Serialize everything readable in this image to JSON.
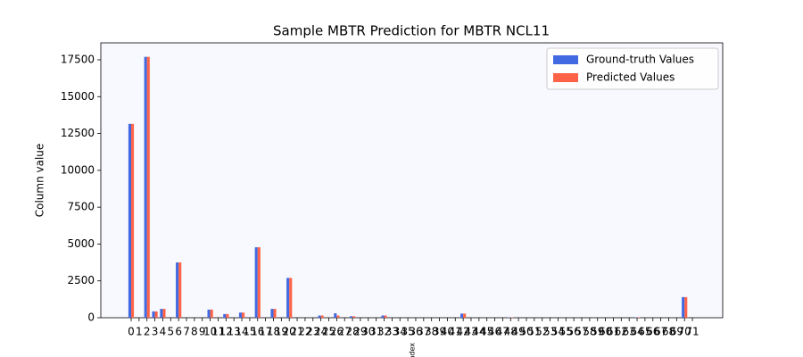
{
  "chart_data": {
    "type": "bar",
    "title": "Sample MBTR Prediction for MBTR NCL11",
    "ylabel": "Column value",
    "xlabel": "Index",
    "categories": [
      0,
      1,
      2,
      3,
      4,
      5,
      6,
      7,
      8,
      9,
      10,
      11,
      12,
      13,
      14,
      15,
      16,
      17,
      18,
      19,
      20,
      21,
      22,
      23,
      24,
      25,
      26,
      27,
      28,
      29,
      30,
      31,
      32,
      33,
      34,
      35,
      36,
      37,
      38,
      39,
      40,
      41,
      42,
      43,
      44,
      45,
      46,
      47,
      48,
      49,
      50,
      51,
      52,
      53,
      54,
      55,
      56,
      57,
      58,
      59,
      60,
      61,
      62,
      63,
      64,
      65,
      66,
      67,
      68,
      69,
      70,
      71
    ],
    "series": [
      {
        "name": "Ground-truth Values",
        "color": "#4169e1",
        "values": [
          13150,
          0,
          17700,
          430,
          600,
          0,
          3750,
          0,
          0,
          0,
          550,
          0,
          250,
          0,
          350,
          0,
          4780,
          0,
          600,
          0,
          2700,
          0,
          0,
          0,
          150,
          0,
          300,
          0,
          100,
          0,
          0,
          0,
          150,
          0,
          0,
          0,
          0,
          0,
          0,
          0,
          0,
          0,
          280,
          0,
          0,
          0,
          0,
          0,
          30,
          0,
          0,
          0,
          0,
          0,
          0,
          0,
          0,
          0,
          0,
          0,
          0,
          0,
          0,
          0,
          30,
          0,
          0,
          0,
          0,
          0,
          1400,
          0
        ]
      },
      {
        "name": "Predicted Values",
        "color": "#ff6347",
        "values": [
          13150,
          0,
          17700,
          430,
          600,
          0,
          3750,
          0,
          0,
          0,
          550,
          0,
          250,
          0,
          350,
          0,
          4780,
          0,
          600,
          0,
          2700,
          0,
          0,
          0,
          150,
          0,
          150,
          0,
          100,
          0,
          0,
          0,
          150,
          0,
          0,
          0,
          0,
          0,
          0,
          0,
          0,
          0,
          280,
          0,
          0,
          0,
          0,
          0,
          30,
          0,
          0,
          0,
          0,
          0,
          0,
          0,
          0,
          0,
          0,
          0,
          0,
          0,
          0,
          0,
          30,
          0,
          0,
          0,
          0,
          0,
          1400,
          0
        ]
      }
    ],
    "ylim": [
      0,
      18650
    ],
    "yticks": [
      0,
      2500,
      5000,
      7500,
      10000,
      12500,
      15000,
      17500
    ],
    "background": "#f8f8ff",
    "legend": "upper right"
  }
}
